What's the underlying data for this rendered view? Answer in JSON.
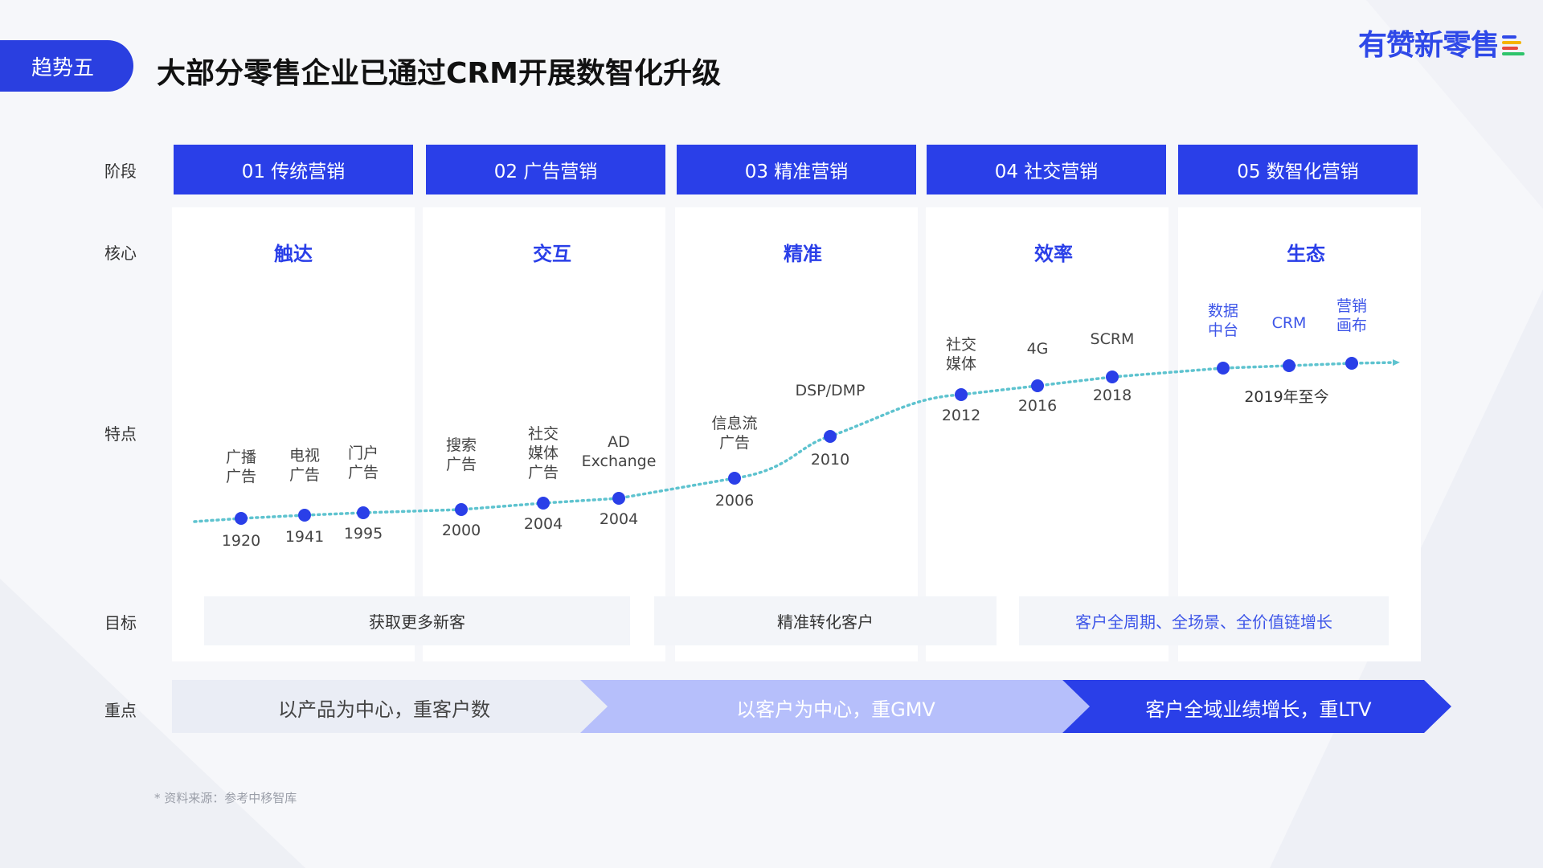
{
  "header": {
    "badge": "趋势五",
    "title": "大部分零售企业已通过CRM开展数智化升级",
    "logo_text": "有赞新零售",
    "logo_mark_colors": [
      "#2f49e8",
      "#f5b400",
      "#e84a3c",
      "#2ec46b"
    ]
  },
  "row_labels": {
    "stage": "阶段",
    "core": "核心",
    "features": "特点",
    "goal": "目标",
    "focus": "重点"
  },
  "stages": [
    {
      "name": "01 传统营销",
      "core": "触达"
    },
    {
      "name": "02 广告营销",
      "core": "交互"
    },
    {
      "name": "03 精准营销",
      "core": "精准"
    },
    {
      "name": "04 社交营销",
      "core": "效率"
    },
    {
      "name": "05 数智化营销",
      "core": "生态"
    }
  ],
  "timeline": [
    {
      "label": [
        "广播",
        "广告"
      ],
      "year": "1920"
    },
    {
      "label": [
        "电视",
        "广告"
      ],
      "year": "1941"
    },
    {
      "label": [
        "门户",
        "广告"
      ],
      "year": "1995"
    },
    {
      "label": [
        "搜索",
        "广告"
      ],
      "year": "2000"
    },
    {
      "label": [
        "社交",
        "媒体",
        "广告"
      ],
      "year": "2004"
    },
    {
      "label": [
        "AD",
        "Exchange"
      ],
      "year": "2004"
    },
    {
      "label": [
        "信息流",
        "广告"
      ],
      "year": "2006"
    },
    {
      "label": [
        "DSP/DMP"
      ],
      "year": "2010"
    },
    {
      "label": [
        "社交",
        "媒体"
      ],
      "year": "2012"
    },
    {
      "label": [
        "4G"
      ],
      "year": "2016"
    },
    {
      "label": [
        "SCRM"
      ],
      "year": "2018"
    },
    {
      "label": [
        "数据",
        "中台"
      ],
      "year": ""
    },
    {
      "label": [
        "CRM"
      ],
      "year": ""
    },
    {
      "label": [
        "营销",
        "画布"
      ],
      "year": ""
    }
  ],
  "timeline_period_label": "2019年至今",
  "goals": [
    {
      "text": "获取更多新客"
    },
    {
      "text": "精准转化客户"
    },
    {
      "text": "客户全周期、全场景、全价值链增长"
    }
  ],
  "focus": [
    {
      "text": "以产品为中心，重客户数"
    },
    {
      "text": "以客户为中心，重GMV"
    },
    {
      "text": "客户全域业绩增长，重LTV"
    }
  ],
  "colors": {
    "primary": "#2a3fe8",
    "dot": "#2a3fe8",
    "trend_line": "#5ec3cf",
    "focus_1": "#eaedf5",
    "focus_2": "#b6bffb",
    "focus_3": "#2a3fe8",
    "late_label": "#3d55e8"
  },
  "source": "* 资料来源：参考中移智库"
}
